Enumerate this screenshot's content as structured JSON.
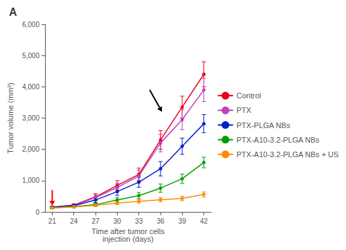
{
  "chart_data": {
    "type": "line",
    "title": "A",
    "xlabel": "Time after tumor cells\ninjection (days)",
    "ylabel": "Tumor volume (mm³)",
    "x": [
      21,
      24,
      27,
      30,
      33,
      36,
      39,
      42
    ],
    "xlim": [
      20,
      43
    ],
    "xticks": [
      21,
      24,
      27,
      30,
      33,
      36,
      39,
      42
    ],
    "ylim": [
      0,
      6000
    ],
    "yticks": [
      0,
      {
        "value": 1000,
        "label": "1,000"
      },
      {
        "value": 2000,
        "label": "2,000"
      },
      {
        "value": 3000,
        "label": "3,000"
      },
      {
        "value": 4000,
        "label": "4,000"
      },
      {
        "value": 5000,
        "label": "5,000"
      },
      {
        "value": 6000,
        "label": "6,000"
      }
    ],
    "grid": false,
    "legend": "right",
    "series": [
      {
        "name": "Control",
        "color": "#e8001c",
        "marker": "o",
        "values": [
          150,
          220,
          480,
          850,
          1200,
          2300,
          3350,
          4400
        ],
        "yerr": [
          30,
          40,
          100,
          150,
          200,
          300,
          350,
          400
        ]
      },
      {
        "name": "PTX",
        "color": "#bf40bf",
        "marker": "o",
        "values": [
          150,
          210,
          460,
          780,
          1150,
          2200,
          2950,
          3900
        ],
        "yerr": [
          30,
          40,
          90,
          140,
          180,
          280,
          320,
          370
        ]
      },
      {
        "name": "PTX-PLGA NBs",
        "color": "#0020c8",
        "marker": "o",
        "values": [
          150,
          200,
          380,
          650,
          950,
          1380,
          2100,
          2820
        ],
        "yerr": [
          30,
          40,
          80,
          120,
          160,
          230,
          260,
          290
        ]
      },
      {
        "name": "PTX-A10-3.2-PLGA NBs",
        "color": "#00a000",
        "marker": "o",
        "values": [
          130,
          170,
          230,
          380,
          520,
          760,
          1060,
          1580
        ],
        "yerr": [
          25,
          30,
          50,
          80,
          100,
          130,
          150,
          170
        ]
      },
      {
        "name": "PTX-A10-3.2-PLGA NBs + US",
        "color": "#ff8c00",
        "marker": "o",
        "values": [
          130,
          160,
          210,
          280,
          340,
          390,
          430,
          560
        ],
        "yerr": [
          25,
          30,
          40,
          50,
          60,
          65,
          70,
          80
        ]
      }
    ],
    "arrows": [
      {
        "from": [
          21,
          700
        ],
        "to": [
          21,
          200
        ],
        "color": "red"
      },
      {
        "from": [
          34.5,
          3900
        ],
        "to": [
          36.2,
          3200
        ],
        "color": "black"
      }
    ]
  }
}
